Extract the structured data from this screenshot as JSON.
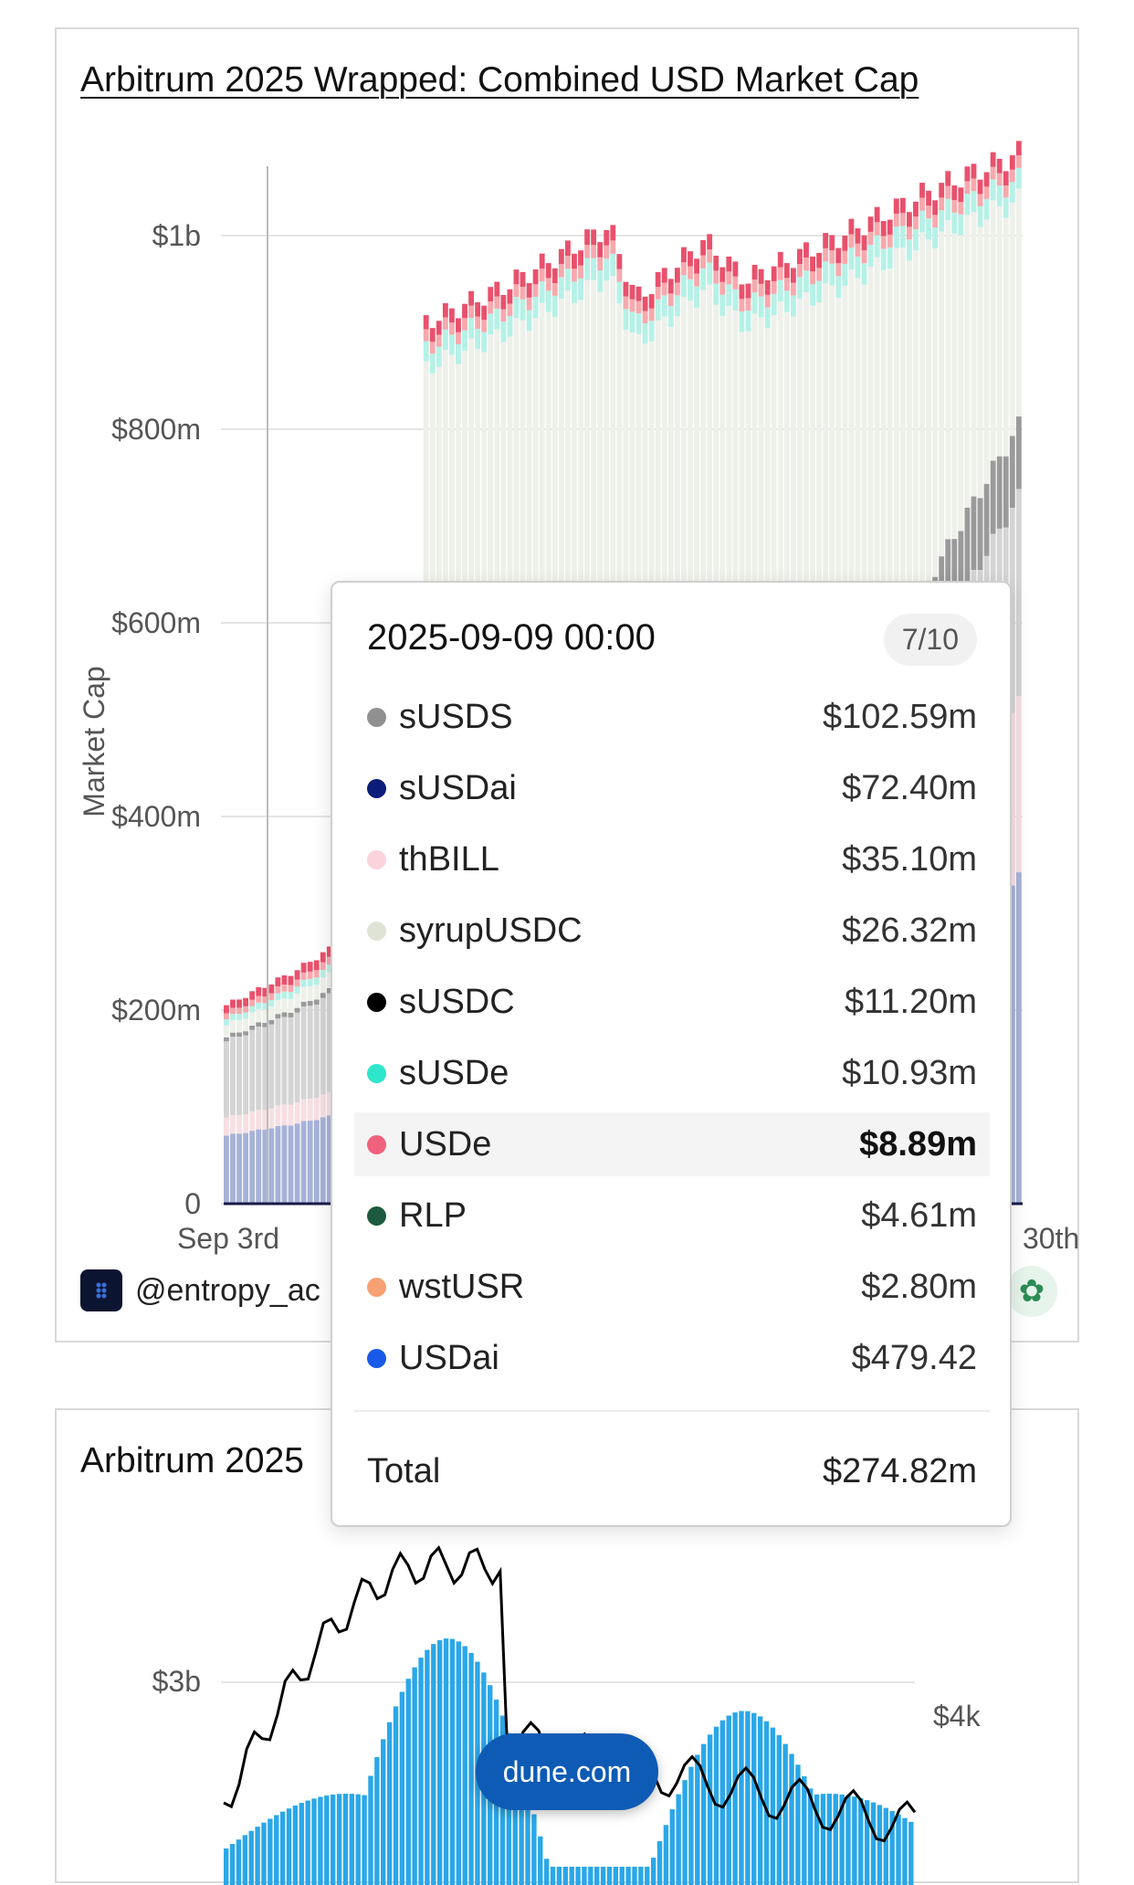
{
  "chart_data": [
    {
      "type": "area",
      "title": "Arbitrum 2025 Wrapped: Combined USD Market Cap",
      "ylabel": "Market Cap",
      "ylim": [
        0,
        1100000000
      ],
      "yticks": [
        {
          "value": 0,
          "label": "0"
        },
        {
          "value": 200000000,
          "label": "$200m"
        },
        {
          "value": 400000000,
          "label": "$400m"
        },
        {
          "value": 600000000,
          "label": "$600m"
        },
        {
          "value": 800000000,
          "label": "$800m"
        },
        {
          "value": 1000000000,
          "label": "$1b"
        }
      ],
      "x_start_label": "Sep 3rd",
      "x_end_label": "30th",
      "series_colors": [
        "#a7b2d8",
        "#f7dfe3",
        "#d4d4d4",
        "#9a9a9a",
        "#eef0ea",
        "#b6f1e6",
        "#f7a9ad",
        "#e8516c"
      ],
      "totals_approx": [
        {
          "x": 0,
          "y": 205000000
        },
        {
          "x": 5,
          "y": 240000000
        },
        {
          "x": 10,
          "y": 285000000
        },
        {
          "x": 14,
          "y": 307000000
        },
        {
          "x": 14.5,
          "y": 910000000
        },
        {
          "x": 20,
          "y": 945000000
        },
        {
          "x": 25,
          "y": 985000000
        },
        {
          "x": 28,
          "y": 1010000000
        },
        {
          "x": 30,
          "y": 935000000
        },
        {
          "x": 35,
          "y": 995000000
        },
        {
          "x": 38,
          "y": 955000000
        },
        {
          "x": 45,
          "y": 1000000000
        },
        {
          "x": 52,
          "y": 1050000000
        },
        {
          "x": 58,
          "y": 1085000000
        }
      ],
      "tooltip": {
        "date": "2025-09-09 00:00",
        "page": "7/10",
        "highlighted": "USDe",
        "rows": [
          {
            "label": "sUSDS",
            "value": "$102.59m",
            "color": "#909090"
          },
          {
            "label": "sUSDai",
            "value": "$72.40m",
            "color": "#0b1d78"
          },
          {
            "label": "thBILL",
            "value": "$35.10m",
            "color": "#fbd3dc"
          },
          {
            "label": "syrupUSDC",
            "value": "$26.32m",
            "color": "#dfe3d6"
          },
          {
            "label": "sUSDC",
            "value": "$11.20m",
            "color": "#000000"
          },
          {
            "label": "sUSDe",
            "value": "$10.93m",
            "color": "#2ee6cc"
          },
          {
            "label": "USDe",
            "value": "$8.89m",
            "color": "#f0627c"
          },
          {
            "label": "RLP",
            "value": "$4.61m",
            "color": "#1d5a3b"
          },
          {
            "label": "wstUSR",
            "value": "$2.80m",
            "color": "#f7a074"
          },
          {
            "label": "USDai",
            "value": "$479.42",
            "color": "#1a5ae8"
          }
        ],
        "total_label": "Total",
        "total_value": "$274.82m"
      },
      "author": "@entropy_ac"
    },
    {
      "type": "bar",
      "title": "Arbitrum 2025",
      "left_tick_label": "$3b",
      "right_tick_label": "$4k",
      "bar_color": "#2aa7e8",
      "line_color": "#000000"
    }
  ],
  "footer": {
    "link_label": "dune.com"
  }
}
